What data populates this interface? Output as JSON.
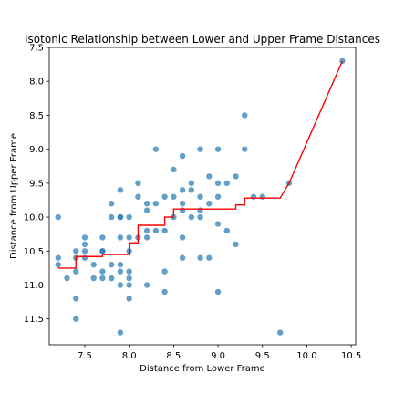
{
  "chart_data": {
    "type": "scatter",
    "title": "Isotonic Relationship between Lower and Upper Frame Distances",
    "xlabel": "Distance from Lower Frame",
    "ylabel": "Distance from Upper Frame",
    "xlim": [
      7.1,
      10.55
    ],
    "ylim": [
      11.88,
      7.5
    ],
    "y_inverted": true,
    "grid": false,
    "colors": {
      "points": "#1f77b4",
      "line": "#ff0000"
    },
    "x_ticks": [
      {
        "value": 7.5,
        "label": "7.5"
      },
      {
        "value": 8.0,
        "label": "8.0"
      },
      {
        "value": 8.5,
        "label": "8.5"
      },
      {
        "value": 9.0,
        "label": "9.0"
      },
      {
        "value": 9.5,
        "label": "9.5"
      },
      {
        "value": 10.0,
        "label": "10.0"
      },
      {
        "value": 10.5,
        "label": "10.5"
      }
    ],
    "y_ticks": [
      {
        "value": 7.5,
        "label": "7.5"
      },
      {
        "value": 8.0,
        "label": "8.0"
      },
      {
        "value": 8.5,
        "label": "8.5"
      },
      {
        "value": 9.0,
        "label": "9.0"
      },
      {
        "value": 9.5,
        "label": "9.5"
      },
      {
        "value": 10.0,
        "label": "10.0"
      },
      {
        "value": 10.5,
        "label": "10.5"
      },
      {
        "value": 11.0,
        "label": "11.0"
      },
      {
        "value": 11.5,
        "label": "11.5"
      }
    ],
    "points": [
      [
        7.2,
        10.0
      ],
      [
        7.2,
        10.6
      ],
      [
        7.2,
        10.7
      ],
      [
        7.3,
        10.9
      ],
      [
        7.4,
        10.5
      ],
      [
        7.4,
        10.6
      ],
      [
        7.4,
        10.8
      ],
      [
        7.4,
        11.2
      ],
      [
        7.4,
        11.5
      ],
      [
        7.5,
        10.3
      ],
      [
        7.5,
        10.4
      ],
      [
        7.5,
        10.5
      ],
      [
        7.5,
        10.6
      ],
      [
        7.6,
        10.7
      ],
      [
        7.6,
        10.9
      ],
      [
        7.7,
        10.3
      ],
      [
        7.7,
        10.5
      ],
      [
        7.7,
        10.5
      ],
      [
        7.7,
        10.8
      ],
      [
        7.7,
        10.9
      ],
      [
        7.8,
        9.8
      ],
      [
        7.8,
        10.0
      ],
      [
        7.8,
        10.7
      ],
      [
        7.8,
        10.9
      ],
      [
        7.9,
        9.6
      ],
      [
        7.9,
        10.0
      ],
      [
        7.9,
        10.0
      ],
      [
        7.9,
        10.3
      ],
      [
        7.9,
        10.7
      ],
      [
        7.9,
        10.8
      ],
      [
        7.9,
        11.0
      ],
      [
        7.9,
        11.7
      ],
      [
        8.0,
        10.0
      ],
      [
        8.0,
        10.3
      ],
      [
        8.0,
        10.5
      ],
      [
        8.0,
        10.8
      ],
      [
        8.0,
        10.9
      ],
      [
        8.0,
        11.0
      ],
      [
        8.0,
        11.2
      ],
      [
        8.1,
        9.5
      ],
      [
        8.1,
        9.7
      ],
      [
        8.1,
        10.3
      ],
      [
        8.2,
        9.8
      ],
      [
        8.2,
        9.9
      ],
      [
        8.2,
        10.2
      ],
      [
        8.2,
        10.3
      ],
      [
        8.2,
        11.0
      ],
      [
        8.3,
        9.0
      ],
      [
        8.3,
        9.8
      ],
      [
        8.3,
        10.2
      ],
      [
        8.4,
        9.7
      ],
      [
        8.4,
        10.2
      ],
      [
        8.4,
        10.8
      ],
      [
        8.4,
        11.1
      ],
      [
        8.5,
        9.3
      ],
      [
        8.5,
        9.7
      ],
      [
        8.5,
        10.0
      ],
      [
        8.6,
        9.1
      ],
      [
        8.6,
        9.6
      ],
      [
        8.6,
        9.8
      ],
      [
        8.6,
        9.9
      ],
      [
        8.6,
        10.3
      ],
      [
        8.6,
        10.6
      ],
      [
        8.7,
        9.5
      ],
      [
        8.7,
        9.6
      ],
      [
        8.7,
        10.0
      ],
      [
        8.8,
        9.0
      ],
      [
        8.8,
        9.7
      ],
      [
        8.8,
        9.9
      ],
      [
        8.8,
        10.0
      ],
      [
        8.8,
        10.6
      ],
      [
        8.9,
        9.4
      ],
      [
        8.9,
        9.8
      ],
      [
        8.9,
        10.6
      ],
      [
        9.0,
        9.0
      ],
      [
        9.0,
        9.5
      ],
      [
        9.0,
        9.7
      ],
      [
        9.0,
        10.1
      ],
      [
        9.0,
        11.1
      ],
      [
        9.1,
        9.5
      ],
      [
        9.1,
        10.2
      ],
      [
        9.2,
        9.4
      ],
      [
        9.2,
        10.4
      ],
      [
        9.3,
        8.5
      ],
      [
        9.3,
        9.0
      ],
      [
        9.4,
        9.7
      ],
      [
        9.5,
        9.7
      ],
      [
        9.7,
        11.7
      ],
      [
        9.8,
        9.5
      ],
      [
        10.4,
        7.7
      ]
    ],
    "isotonic_line": {
      "x": [
        7.2,
        7.4,
        7.4,
        7.7,
        7.7,
        8.0,
        8.0,
        8.1,
        8.1,
        8.4,
        8.4,
        8.5,
        8.5,
        9.2,
        9.2,
        9.3,
        9.3,
        9.7,
        9.8,
        10.4
      ],
      "y": [
        10.75,
        10.75,
        10.58,
        10.58,
        10.55,
        10.55,
        10.38,
        10.38,
        10.12,
        10.12,
        10.0,
        10.0,
        9.88,
        9.88,
        9.82,
        9.82,
        9.72,
        9.72,
        9.5,
        7.7
      ]
    }
  }
}
